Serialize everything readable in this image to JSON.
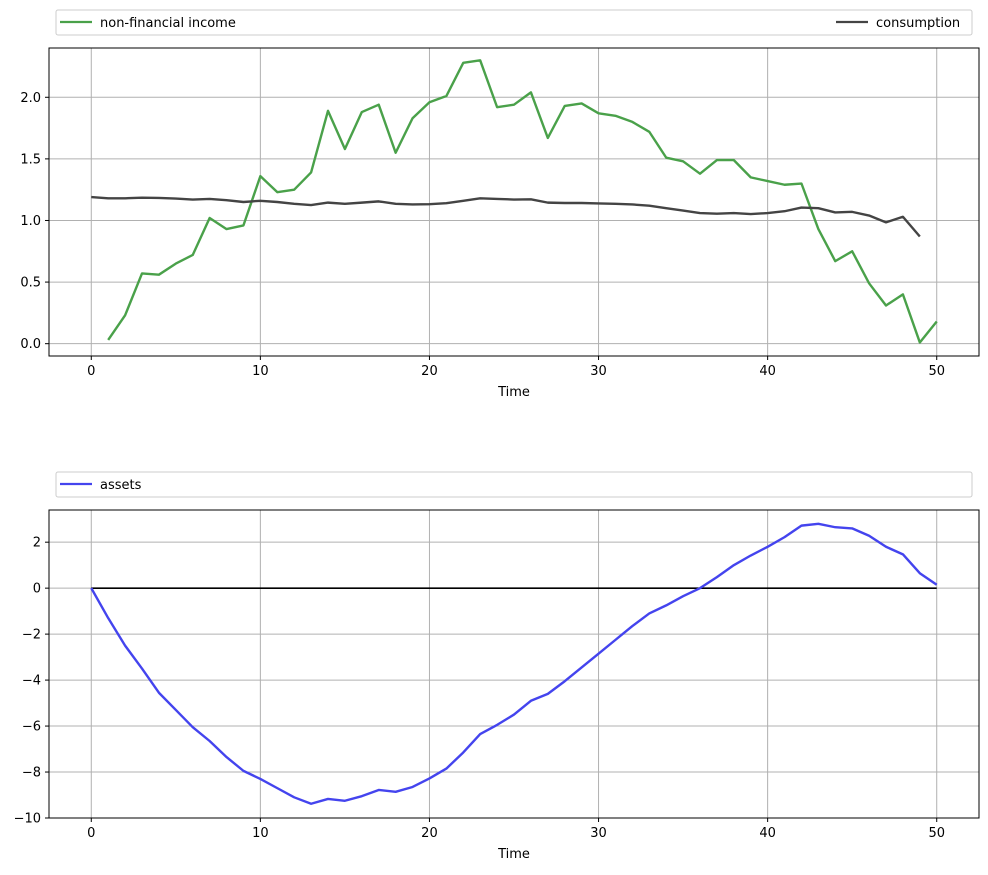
{
  "chart_data": [
    {
      "type": "line",
      "xlabel": "Time",
      "xlim": [
        -2.5,
        52.5
      ],
      "ylim": [
        -0.1,
        2.4
      ],
      "xticks": [
        0,
        10,
        20,
        30,
        40,
        50
      ],
      "yticks": [
        0.0,
        0.5,
        1.0,
        1.5,
        2.0
      ],
      "ytick_labels": [
        "0.0",
        "0.5",
        "1.0",
        "1.5",
        "2.0"
      ],
      "grid": true,
      "legend_placement": "above, spanning full width",
      "series": [
        {
          "name": "non-financial income",
          "color": "#4aa14a",
          "x": [
            1,
            2,
            3,
            4,
            5,
            6,
            7,
            8,
            9,
            10,
            11,
            12,
            13,
            14,
            15,
            16,
            17,
            18,
            19,
            20,
            21,
            22,
            23,
            24,
            25,
            26,
            27,
            28,
            29,
            30,
            31,
            32,
            33,
            34,
            35,
            36,
            37,
            38,
            39,
            40,
            41,
            42,
            43,
            44,
            45,
            46,
            47,
            48,
            49,
            50
          ],
          "values": [
            0.03,
            0.23,
            0.57,
            0.56,
            0.65,
            0.72,
            1.02,
            0.93,
            0.96,
            1.36,
            1.23,
            1.25,
            1.39,
            1.89,
            1.58,
            1.88,
            1.94,
            1.55,
            1.83,
            1.96,
            2.01,
            2.28,
            2.3,
            1.92,
            1.94,
            2.04,
            1.67,
            1.93,
            1.95,
            1.87,
            1.85,
            1.8,
            1.72,
            1.51,
            1.48,
            1.38,
            1.49,
            1.49,
            1.35,
            1.32,
            1.29,
            1.3,
            0.93,
            0.67,
            0.75,
            0.49,
            0.31,
            0.4,
            0.01,
            0.18
          ]
        },
        {
          "name": "consumption",
          "color": "#444444",
          "x": [
            0,
            1,
            2,
            3,
            4,
            5,
            6,
            7,
            8,
            9,
            10,
            11,
            12,
            13,
            14,
            15,
            16,
            17,
            18,
            19,
            20,
            21,
            22,
            23,
            24,
            25,
            26,
            27,
            28,
            29,
            30,
            31,
            32,
            33,
            34,
            35,
            36,
            37,
            38,
            39,
            40,
            41,
            42,
            43,
            44,
            45,
            46,
            47,
            48,
            49
          ],
          "values": [
            1.19,
            1.18,
            1.18,
            1.185,
            1.183,
            1.178,
            1.17,
            1.175,
            1.165,
            1.15,
            1.16,
            1.15,
            1.135,
            1.125,
            1.145,
            1.135,
            1.145,
            1.155,
            1.135,
            1.13,
            1.132,
            1.14,
            1.16,
            1.18,
            1.175,
            1.17,
            1.172,
            1.145,
            1.142,
            1.142,
            1.138,
            1.135,
            1.13,
            1.12,
            1.1,
            1.08,
            1.06,
            1.055,
            1.06,
            1.052,
            1.06,
            1.075,
            1.105,
            1.1,
            1.065,
            1.07,
            1.04,
            0.985,
            1.03,
            0.87
          ]
        }
      ]
    },
    {
      "type": "line",
      "xlabel": "Time",
      "xlim": [
        -2.5,
        52.5
      ],
      "ylim": [
        -10.0,
        3.4
      ],
      "xticks": [
        0,
        10,
        20,
        30,
        40,
        50
      ],
      "yticks": [
        -10,
        -8,
        -6,
        -4,
        -2,
        0,
        2
      ],
      "ytick_labels": [
        "−10",
        "−8",
        "−6",
        "−4",
        "−2",
        "0",
        "2"
      ],
      "grid": true,
      "zero_line": {
        "y": 0,
        "x_from": 0,
        "x_to": 50,
        "color": "#000000"
      },
      "legend_placement": "above, spanning full width",
      "series": [
        {
          "name": "assets",
          "color": "#4444ee",
          "x": [
            0,
            1,
            2,
            3,
            4,
            5,
            6,
            7,
            8,
            9,
            10,
            11,
            12,
            13,
            14,
            15,
            16,
            17,
            18,
            19,
            20,
            21,
            22,
            23,
            24,
            25,
            26,
            27,
            28,
            29,
            30,
            31,
            32,
            33,
            34,
            35,
            36,
            37,
            38,
            39,
            40,
            41,
            42,
            43,
            44,
            45,
            46,
            47,
            48,
            49,
            50
          ],
          "values": [
            0,
            -1.3,
            -2.5,
            -3.5,
            -4.55,
            -5.3,
            -6.05,
            -6.65,
            -7.35,
            -7.95,
            -8.3,
            -8.7,
            -9.1,
            -9.38,
            -9.17,
            -9.25,
            -9.05,
            -8.78,
            -8.86,
            -8.65,
            -8.28,
            -7.85,
            -7.15,
            -6.35,
            -5.95,
            -5.5,
            -4.9,
            -4.6,
            -4.05,
            -3.45,
            -2.85,
            -2.25,
            -1.65,
            -1.1,
            -0.75,
            -0.35,
            0.0,
            0.48,
            1.0,
            1.42,
            1.8,
            2.22,
            2.72,
            2.8,
            2.65,
            2.6,
            2.28,
            1.8,
            1.47,
            0.65,
            0.15
          ]
        }
      ]
    }
  ]
}
